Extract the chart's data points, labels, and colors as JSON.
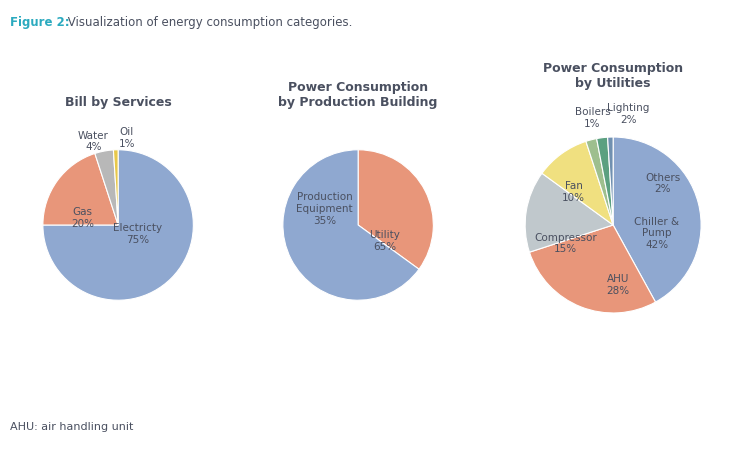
{
  "figure_label": "Figure 2:",
  "figure_title": " Visualization of energy consumption categories.",
  "figure_label_color": "#2BAABF",
  "footnote": "AHU: air handling unit",
  "chart1_title": "Bill by Services",
  "chart1_values": [
    75,
    20,
    4,
    1
  ],
  "chart1_colors": [
    "#8FA8D0",
    "#E8967A",
    "#B8B8B8",
    "#E8C84A"
  ],
  "chart1_startangle": 90,
  "chart2_title": "Power Consumption\nby Production Building",
  "chart2_values": [
    35,
    65
  ],
  "chart2_colors": [
    "#E8967A",
    "#8FA8D0"
  ],
  "chart2_startangle": 90,
  "chart3_title": "Power Consumption\nby Utilities",
  "chart3_values": [
    42,
    28,
    15,
    10,
    2,
    2,
    1
  ],
  "chart3_colors": [
    "#8FA8D0",
    "#E8967A",
    "#C0C8CC",
    "#F0E080",
    "#9EBF8E",
    "#5BA080",
    "#7090B0"
  ],
  "chart3_startangle": 90,
  "background_color": "#FFFFFF",
  "text_color": "#4A5060"
}
